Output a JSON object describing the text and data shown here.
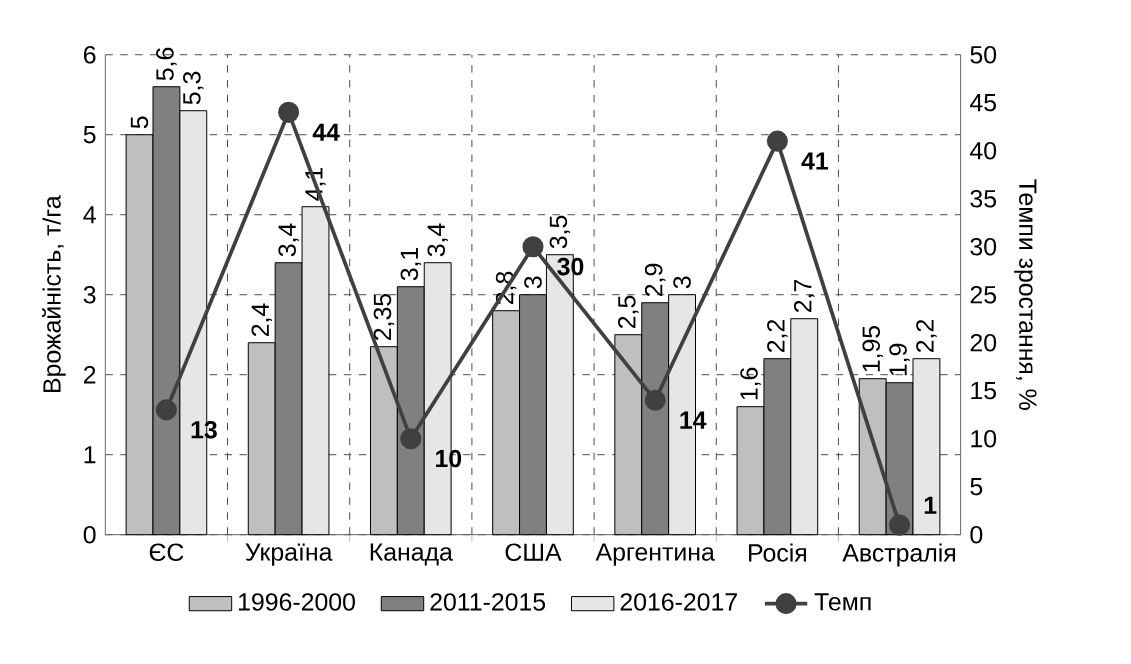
{
  "chart_data": {
    "type": "bar",
    "ylabel": "Врожайність, т/га",
    "y2label": "Темпи зростання, %",
    "categories": [
      "ЄС",
      "Україна",
      "Канада",
      "США",
      "Аргентина",
      "Росія",
      "Австралія"
    ],
    "series": [
      {
        "name": "1996-2000",
        "color": "#bfbfbf",
        "values": [
          5,
          2.4,
          2.35,
          2.8,
          2.5,
          1.6,
          1.95
        ],
        "value_labels": [
          "5",
          "2,4",
          "2,35",
          "2,8",
          "2,5",
          "1,6",
          "1,95"
        ]
      },
      {
        "name": "2011-2015",
        "color": "#808080",
        "values": [
          5.6,
          3.4,
          3.1,
          3,
          2.9,
          2.2,
          1.9
        ],
        "value_labels": [
          "5,6",
          "3,4",
          "3,1",
          "3",
          "2,9",
          "2,2",
          "1,9"
        ]
      },
      {
        "name": "2016-2017",
        "color": "#e6e6e6",
        "values": [
          5.3,
          4.1,
          3.4,
          3.5,
          3,
          2.7,
          2.2
        ],
        "value_labels": [
          "5,3",
          "4,1",
          "3,4",
          "3,5",
          "3",
          "2,7",
          "2,2"
        ]
      },
      {
        "name": "Темп",
        "type": "line",
        "axis": "y2",
        "color": "#404040",
        "marker": "circle",
        "values": [
          13,
          44,
          10,
          30,
          14,
          41,
          1
        ],
        "value_labels": [
          "13",
          "44",
          "10",
          "30",
          "14",
          "41",
          "1"
        ]
      }
    ],
    "ylim": [
      0,
      6
    ],
    "yticks": [
      0,
      1,
      2,
      3,
      4,
      5,
      6
    ],
    "y2lim": [
      0,
      50
    ],
    "y2ticks": [
      0,
      5,
      10,
      15,
      20,
      25,
      30,
      35,
      40,
      45,
      50
    ],
    "grid": true,
    "legend": "bottom"
  }
}
